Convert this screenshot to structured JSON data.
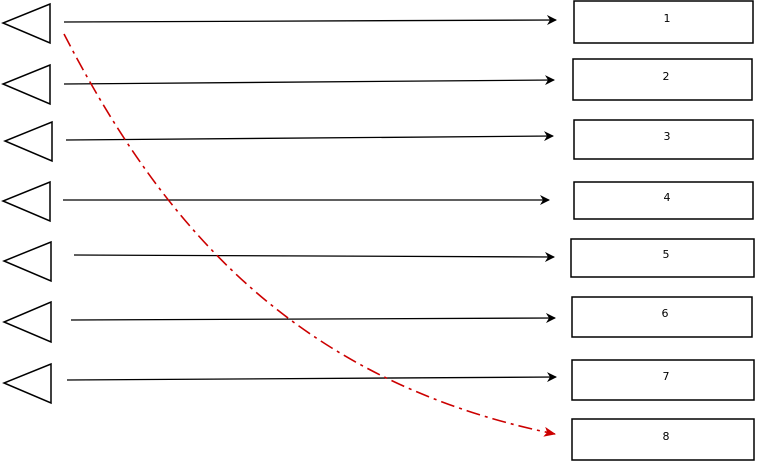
{
  "diagram": {
    "boxes": [
      {
        "label": "1"
      },
      {
        "label": "2"
      },
      {
        "label": "3"
      },
      {
        "label": "4"
      },
      {
        "label": "5"
      },
      {
        "label": "6"
      },
      {
        "label": "7"
      },
      {
        "label": "8"
      }
    ],
    "colors": {
      "stroke": "#000000",
      "highlight_arrow": "#cc0000",
      "background": "#ffffff"
    }
  }
}
